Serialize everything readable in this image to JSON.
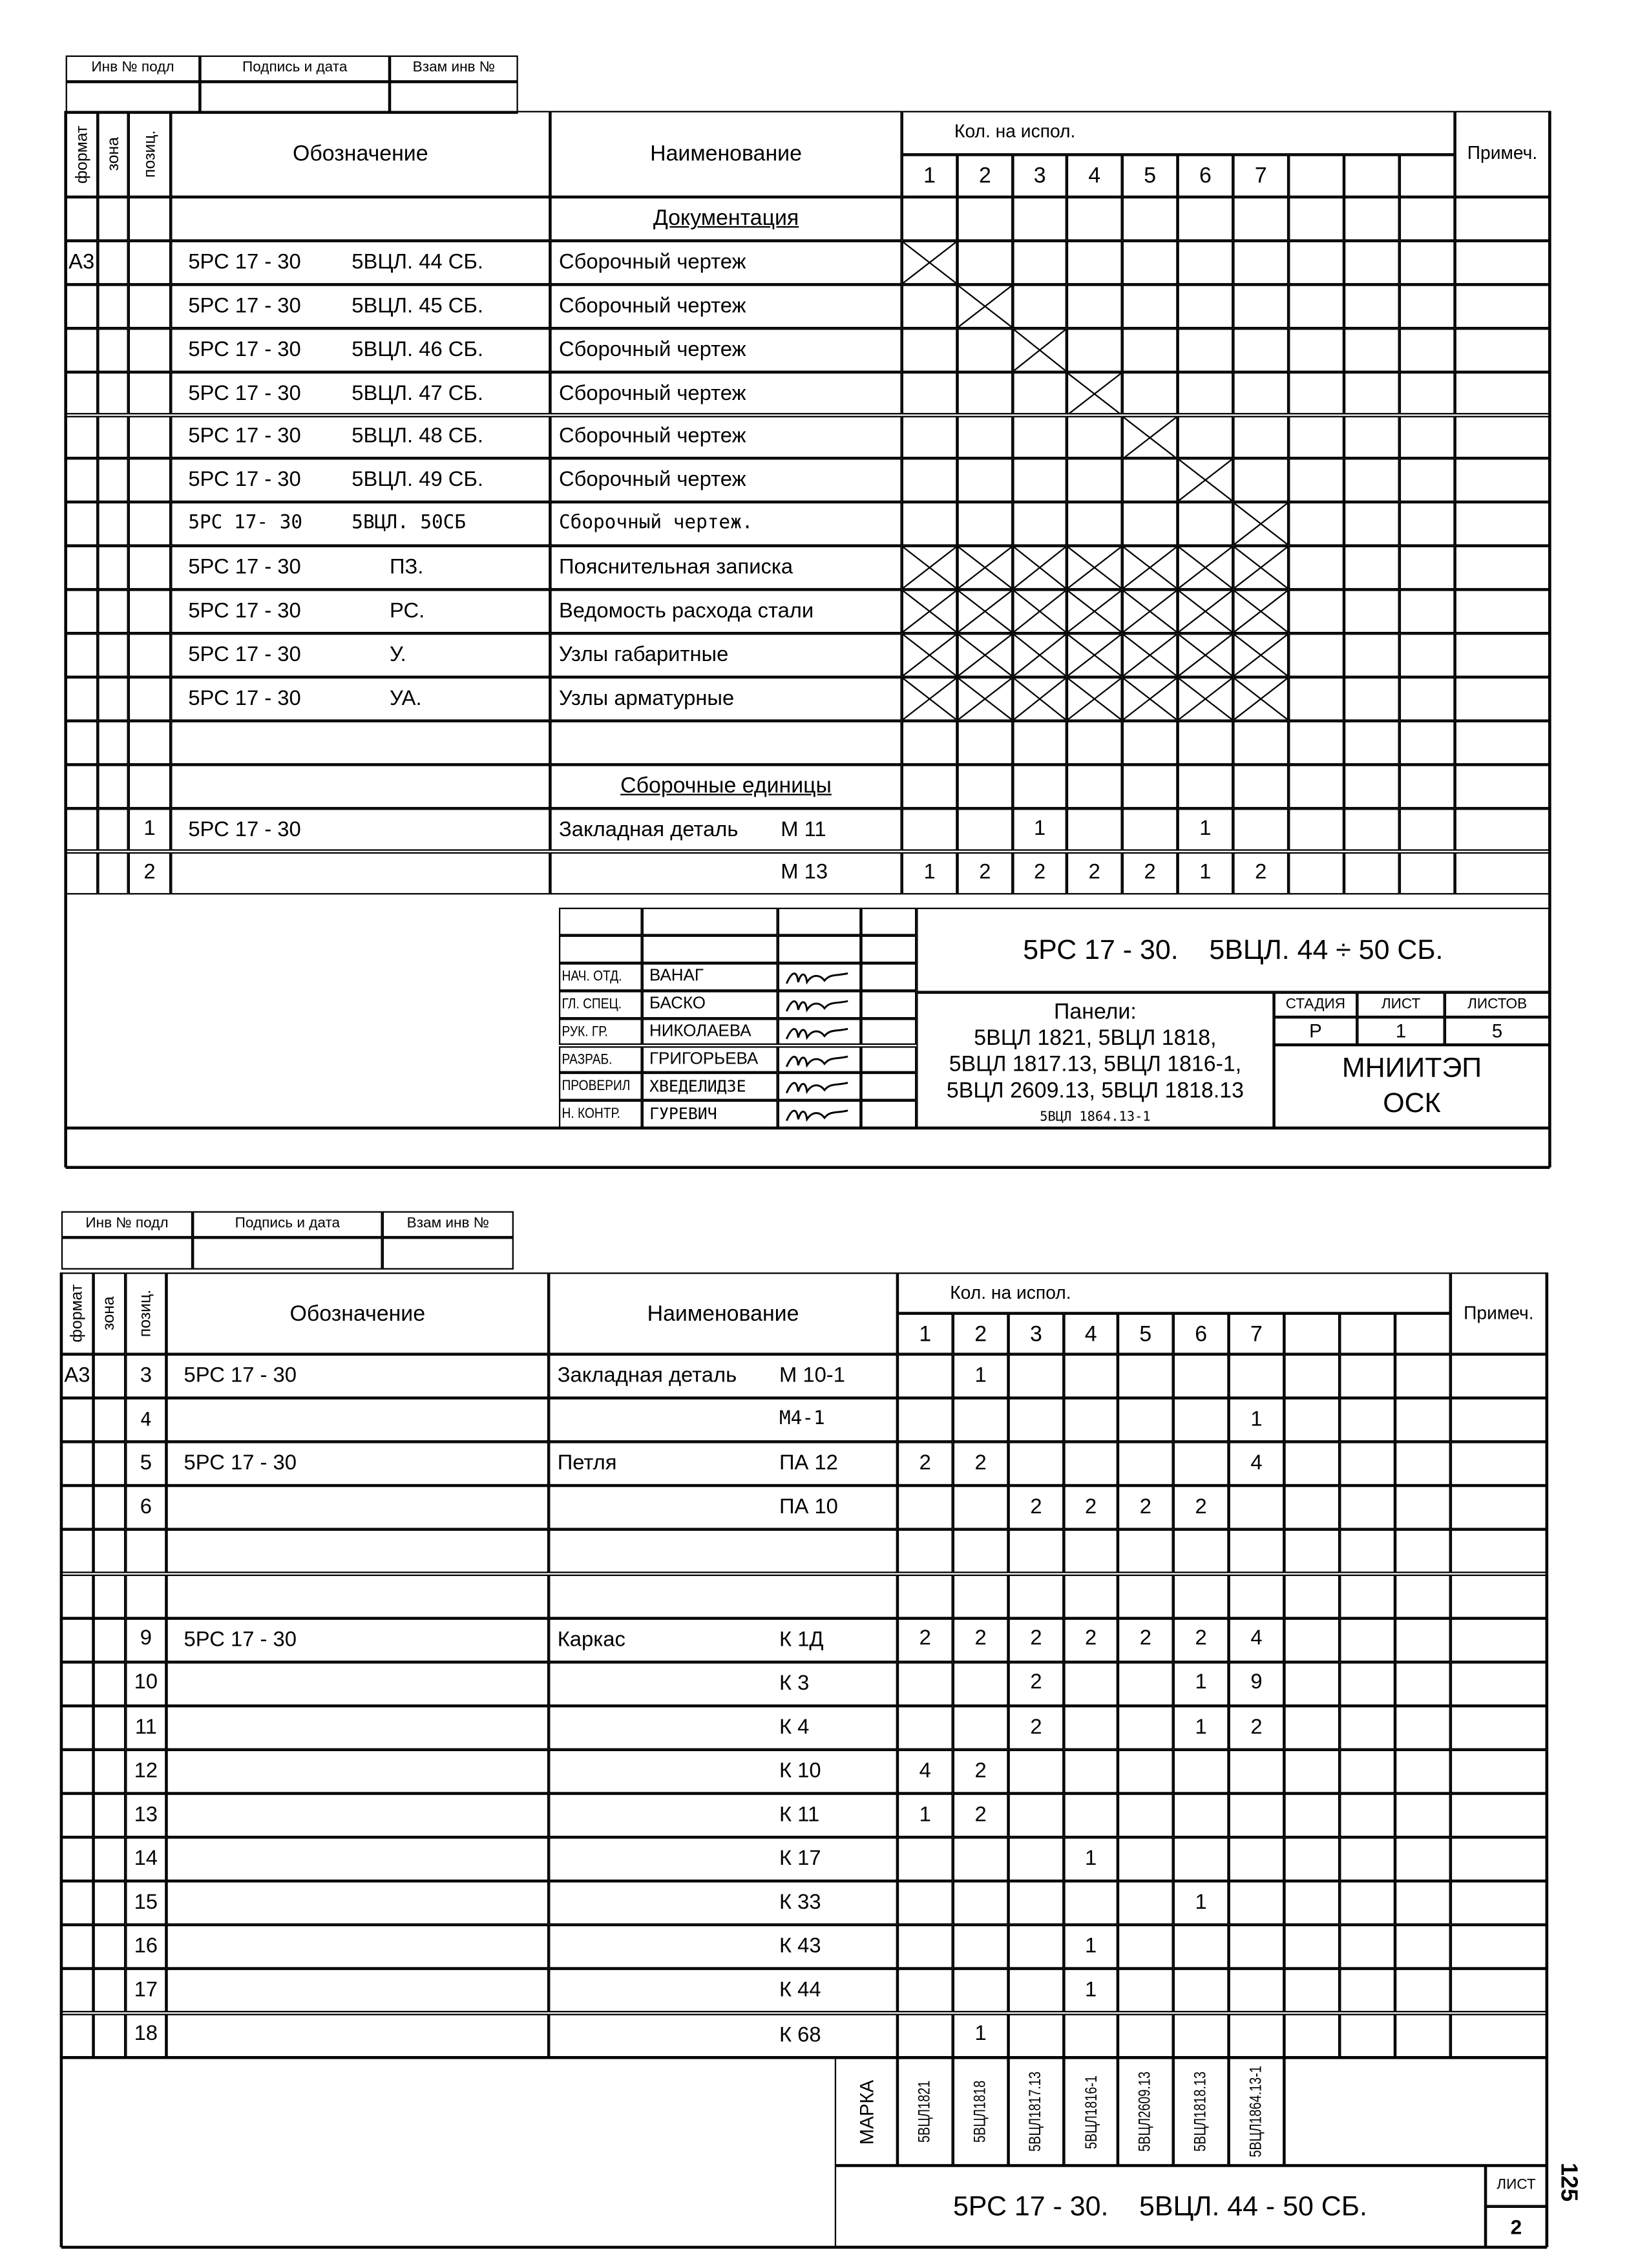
{
  "stamp": {
    "inv": "Инв № подл",
    "sign": "Подпись и дата",
    "vzam": "Взам инв №"
  },
  "header": {
    "format": "формат",
    "zone": "зона",
    "pos": "позиц.",
    "designation": "Обозначение",
    "name": "Наименование",
    "qty": "Кол. на испол.",
    "notes": "Примеч.",
    "cols": [
      "1",
      "2",
      "3",
      "4",
      "5",
      "6",
      "7"
    ]
  },
  "sheet1": {
    "rows": [
      {
        "section": "Документация"
      },
      {
        "format": "А3",
        "code": "5РС 17 - 30",
        "doc": "5ВЦЛ. 44 СБ.",
        "name": "Сборочный чертеж",
        "crossed": [
          1
        ]
      },
      {
        "code": "5РС 17 - 30",
        "doc": "5ВЦЛ. 45 СБ.",
        "name": "Сборочный чертеж",
        "crossed": [
          2
        ]
      },
      {
        "code": "5РС 17 - 30",
        "doc": "5ВЦЛ. 46 СБ.",
        "name": "Сборочный чертеж",
        "crossed": [
          3
        ]
      },
      {
        "code": "5РС 17 - 30",
        "doc": "5ВЦЛ. 47 СБ.",
        "name": "Сборочный чертеж",
        "crossed": [
          4
        ]
      },
      {
        "code": "5РС 17 - 30",
        "doc": "5ВЦЛ. 48 СБ.",
        "name": "Сборочный чертеж",
        "crossed": [
          5
        ]
      },
      {
        "code": "5РС 17 - 30",
        "doc": "5ВЦЛ. 49 СБ.",
        "name": "Сборочный чертеж",
        "crossed": [
          6
        ]
      },
      {
        "code": "5РС 17- 30",
        "doc": "5ВЦЛ. 50СБ",
        "name": "Сборочный чертеж.",
        "crossed": [
          7
        ],
        "hand": true
      },
      {
        "code": "5РС 17 - 30",
        "doc": "ПЗ.",
        "name": "Пояснительная записка",
        "crossed": [
          1,
          2,
          3,
          4,
          5,
          6,
          7
        ]
      },
      {
        "code": "5РС 17 - 30",
        "doc": "РС.",
        "name": "Ведомость расхода стали",
        "crossed": [
          1,
          2,
          3,
          4,
          5,
          6,
          7
        ]
      },
      {
        "code": "5РС 17 - 30",
        "doc": "У.",
        "name": "Узлы габаритные",
        "crossed": [
          1,
          2,
          3,
          4,
          5,
          6,
          7
        ]
      },
      {
        "code": "5РС 17 - 30",
        "doc": "УА.",
        "name": "Узлы арматурные",
        "crossed": [
          1,
          2,
          3,
          4,
          5,
          6,
          7
        ]
      },
      {},
      {
        "section": "Сборочные единицы"
      },
      {
        "pos": "1",
        "code": "5РС 17 - 30",
        "name": "Закладная деталь",
        "mark": "М 11",
        "qty": [
          "",
          "",
          "1",
          "",
          "",
          "1",
          ""
        ]
      },
      {
        "pos": "2",
        "mark": "М 13",
        "qty": [
          "1",
          "2",
          "2",
          "2",
          "2",
          "1",
          "2"
        ]
      }
    ],
    "title_block": {
      "signers": [
        {
          "role": "НАЧ. ОТД.",
          "name": "ВАНАГ"
        },
        {
          "role": "ГЛ. СПЕЦ.",
          "name": "БАСКО"
        },
        {
          "role": "РУК. ГР.",
          "name": "НИКОЛАЕВА"
        },
        {
          "role": "РАЗРАБ.",
          "name": "ГРИГОРЬЕВА"
        },
        {
          "role": "ПРОВЕРИЛ",
          "name": "ХВЕДЕЛИДЗЕ"
        },
        {
          "role": "Н. КОНТР.",
          "name": "ГУРЕВИЧ"
        }
      ],
      "title": "5РС 17 - 30.    5ВЦЛ. 44 ÷ 50 СБ.",
      "panels_label": "Панели:",
      "panels": [
        "5ВЦЛ 1821, 5ВЦЛ 1818,",
        "5ВЦЛ 1817.13, 5ВЦЛ 1816-1,",
        "5ВЦЛ 2609.13, 5ВЦЛ 1818.13"
      ],
      "panels_handwritten": "5ВЦЛ 1864.13-1",
      "stage_label": "СТАДИЯ",
      "sheet_label": "ЛИСТ",
      "sheets_label": "ЛИСТОВ",
      "stage": "Р",
      "sheet": "1",
      "sheets": "5",
      "org": [
        "МНИИТЭП",
        "ОСК"
      ]
    }
  },
  "sheet2": {
    "rows": [
      {
        "format": "А3",
        "pos": "3",
        "code": "5РС 17 - 30",
        "name": "Закладная деталь",
        "mark": "М 10-1",
        "qty": [
          "",
          "1",
          "",
          "",
          "",
          "",
          ""
        ]
      },
      {
        "pos": "4",
        "mark": "М4-1",
        "qty": [
          "",
          "",
          "",
          "",
          "",
          "",
          "1"
        ],
        "hand": true
      },
      {
        "pos": "5",
        "code": "5РС 17 - 30",
        "name": "Петля",
        "mark": "ПА 12",
        "qty": [
          "2",
          "2",
          "",
          "",
          "",
          "",
          "4"
        ]
      },
      {
        "pos": "6",
        "mark": "ПА 10",
        "qty": [
          "",
          "",
          "2",
          "2",
          "2",
          "2",
          ""
        ]
      },
      {},
      {},
      {
        "pos": "9",
        "code": "5РС 17 - 30",
        "name": "Каркас",
        "mark": "К 1Д",
        "qty": [
          "2",
          "2",
          "2",
          "2",
          "2",
          "2",
          "4"
        ]
      },
      {
        "pos": "10",
        "mark": "К 3",
        "qty": [
          "",
          "",
          "2",
          "",
          "",
          "1",
          "9"
        ]
      },
      {
        "pos": "11",
        "mark": "К 4",
        "qty": [
          "",
          "",
          "2",
          "",
          "",
          "1",
          "2"
        ]
      },
      {
        "pos": "12",
        "mark": "К 10",
        "qty": [
          "4",
          "2",
          "",
          "",
          "",
          "",
          ""
        ]
      },
      {
        "pos": "13",
        "mark": "К 11",
        "qty": [
          "1",
          "2",
          "",
          "",
          "",
          "",
          ""
        ]
      },
      {
        "pos": "14",
        "mark": "К 17",
        "qty": [
          "",
          "",
          "",
          "1",
          "",
          "",
          ""
        ]
      },
      {
        "pos": "15",
        "mark": "К 33",
        "qty": [
          "",
          "",
          "",
          "",
          "",
          "1",
          ""
        ]
      },
      {
        "pos": "16",
        "mark": "К 43",
        "qty": [
          "",
          "",
          "",
          "1",
          "",
          "",
          ""
        ]
      },
      {
        "pos": "17",
        "mark": "К 44",
        "qty": [
          "",
          "",
          "",
          "1",
          "",
          "",
          ""
        ]
      },
      {
        "pos": "18",
        "mark": "К 68",
        "qty": [
          "",
          "1",
          "",
          "",
          "",
          "",
          ""
        ]
      }
    ],
    "marka_label": "МАРКА",
    "marks": [
      "5ВЦЛ1821",
      "5ВЦЛ1818",
      "5ВЦЛ1817.13",
      "5ВЦЛ1816-1",
      "5ВЦЛ2609.13",
      "5ВЦЛ1818.13",
      "5ВЦЛ1864.13-1"
    ],
    "title": "5РС 17 - 30.    5ВЦЛ. 44 - 50 СБ.",
    "sheet_label": "ЛИСТ",
    "sheet": "2",
    "page_number": "125"
  }
}
